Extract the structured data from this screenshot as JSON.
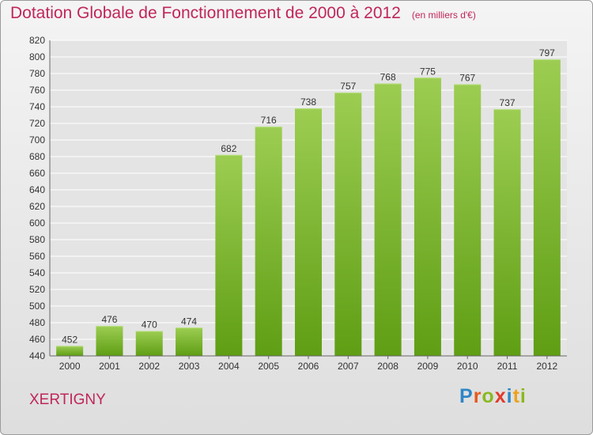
{
  "title": "Dotation Globale de Fonctionnement de 2000 à 2012",
  "unit_label": "(en milliers d'€)",
  "commune": "XERTIGNY",
  "logo": {
    "text": "Proxiti",
    "letters": [
      "P",
      "r",
      "o",
      "x",
      "i",
      "t",
      "i"
    ],
    "colors": [
      "#2d86c7",
      "#e45a1b",
      "#8ab81f",
      "#e23a2c",
      "#2d86c7",
      "#f0a21c",
      "#8ab81f"
    ]
  },
  "colors": {
    "bar_top": "#9ccd52",
    "bar_bottom": "#5f9e14",
    "title": "#c0265a",
    "grid": "#ffffff"
  },
  "chart_data": {
    "type": "bar",
    "title": "Dotation Globale de Fonctionnement de 2000 à 2012",
    "subtitle": "(en milliers d'€)",
    "categories": [
      "2000",
      "2001",
      "2002",
      "2003",
      "2004",
      "2005",
      "2006",
      "2007",
      "2008",
      "2009",
      "2010",
      "2011",
      "2012"
    ],
    "values": [
      452,
      476,
      470,
      474,
      682,
      716,
      738,
      757,
      768,
      775,
      767,
      737,
      797
    ],
    "ylim": [
      440,
      820
    ],
    "yticks": [
      440,
      460,
      480,
      500,
      520,
      540,
      560,
      580,
      600,
      620,
      640,
      660,
      680,
      700,
      720,
      740,
      760,
      780,
      800,
      820
    ],
    "grid": true,
    "xlabel": "",
    "ylabel": ""
  }
}
